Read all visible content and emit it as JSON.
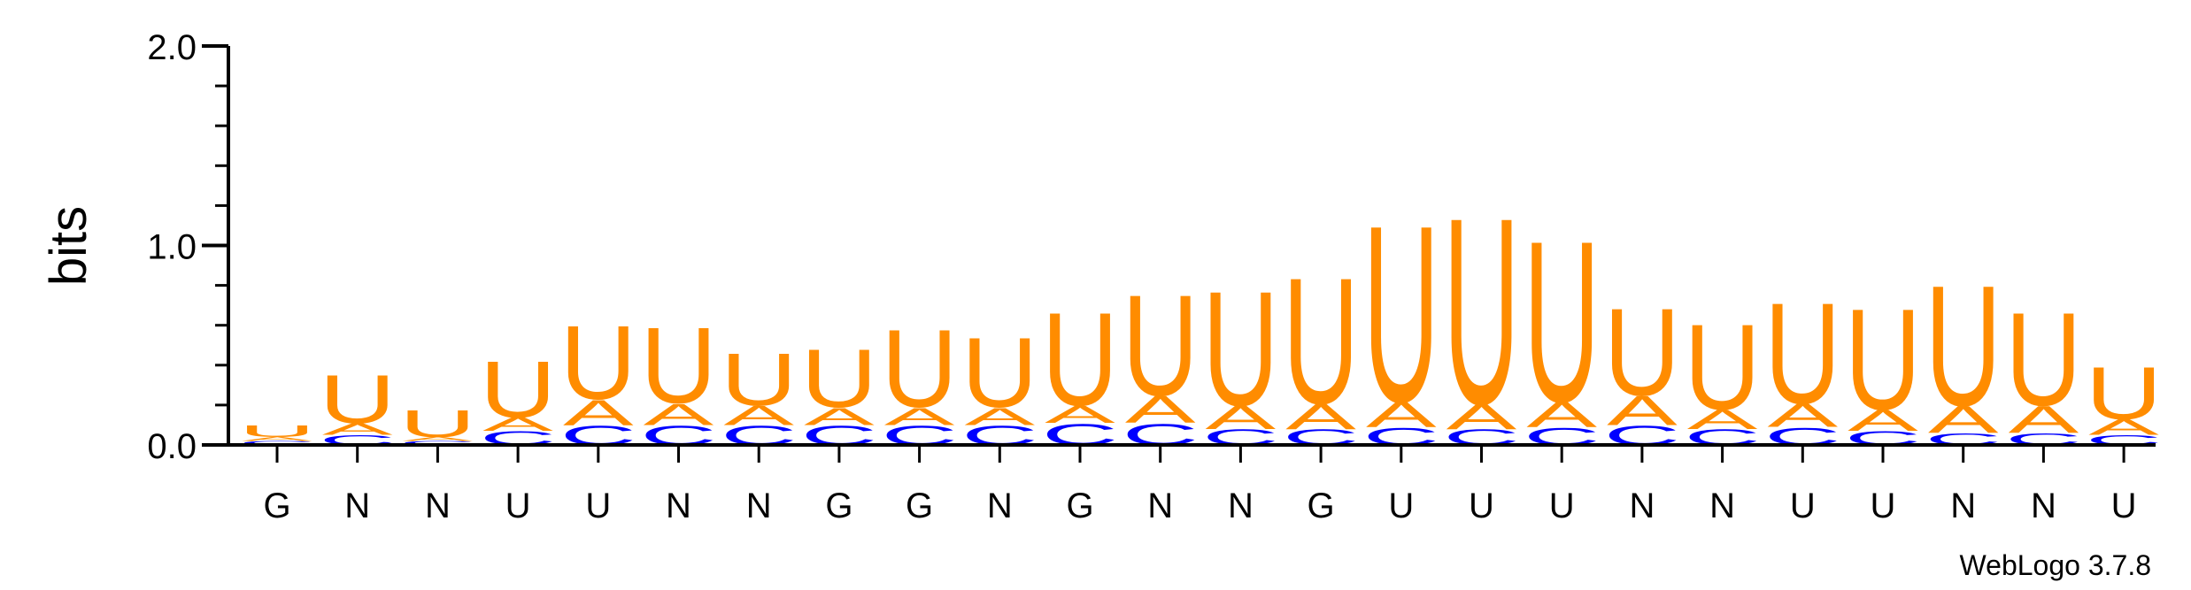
{
  "chart_data": {
    "type": "sequence-logo",
    "ylabel": "bits",
    "ylim": [
      0,
      2.0
    ],
    "yticks": [
      "0.0",
      "1.0",
      "2.0"
    ],
    "positions": [
      "G",
      "N",
      "N",
      "U",
      "U",
      "N",
      "N",
      "G",
      "G",
      "N",
      "G",
      "N",
      "N",
      "G",
      "U",
      "U",
      "U",
      "N",
      "N",
      "U",
      "U",
      "N",
      "N",
      "U"
    ],
    "stacks": [
      [
        {
          "letter": "C",
          "value": 0.02
        },
        {
          "letter": "A",
          "value": 0.02
        },
        {
          "letter": "U",
          "value": 0.06
        }
      ],
      [
        {
          "letter": "C",
          "value": 0.05
        },
        {
          "letter": "A",
          "value": 0.06
        },
        {
          "letter": "U",
          "value": 0.25
        }
      ],
      [
        {
          "letter": "C",
          "value": 0.02
        },
        {
          "letter": "A",
          "value": 0.02
        },
        {
          "letter": "U",
          "value": 0.14
        }
      ],
      [
        {
          "letter": "C",
          "value": 0.07
        },
        {
          "letter": "A",
          "value": 0.07
        },
        {
          "letter": "U",
          "value": 0.29
        }
      ],
      [
        {
          "letter": "C",
          "value": 0.1
        },
        {
          "letter": "A",
          "value": 0.13
        },
        {
          "letter": "U",
          "value": 0.38
        }
      ],
      [
        {
          "letter": "C",
          "value": 0.1
        },
        {
          "letter": "A",
          "value": 0.11
        },
        {
          "letter": "U",
          "value": 0.39
        }
      ],
      [
        {
          "letter": "C",
          "value": 0.1
        },
        {
          "letter": "A",
          "value": 0.1
        },
        {
          "letter": "U",
          "value": 0.27
        }
      ],
      [
        {
          "letter": "C",
          "value": 0.1
        },
        {
          "letter": "A",
          "value": 0.09
        },
        {
          "letter": "U",
          "value": 0.3
        }
      ],
      [
        {
          "letter": "C",
          "value": 0.1
        },
        {
          "letter": "A",
          "value": 0.09
        },
        {
          "letter": "U",
          "value": 0.4
        }
      ],
      [
        {
          "letter": "C",
          "value": 0.1
        },
        {
          "letter": "A",
          "value": 0.09
        },
        {
          "letter": "U",
          "value": 0.36
        }
      ],
      [
        {
          "letter": "C",
          "value": 0.11
        },
        {
          "letter": "A",
          "value": 0.09
        },
        {
          "letter": "U",
          "value": 0.48
        }
      ],
      [
        {
          "letter": "C",
          "value": 0.11
        },
        {
          "letter": "A",
          "value": 0.14
        },
        {
          "letter": "U",
          "value": 0.52
        }
      ],
      [
        {
          "letter": "C",
          "value": 0.08
        },
        {
          "letter": "A",
          "value": 0.12
        },
        {
          "letter": "U",
          "value": 0.59
        }
      ],
      [
        {
          "letter": "C",
          "value": 0.08
        },
        {
          "letter": "A",
          "value": 0.13
        },
        {
          "letter": "U",
          "value": 0.65
        }
      ],
      [
        {
          "letter": "C",
          "value": 0.09
        },
        {
          "letter": "A",
          "value": 0.13
        },
        {
          "letter": "U",
          "value": 0.91
        }
      ],
      [
        {
          "letter": "C",
          "value": 0.08
        },
        {
          "letter": "A",
          "value": 0.13
        },
        {
          "letter": "U",
          "value": 0.96
        }
      ],
      [
        {
          "letter": "C",
          "value": 0.09
        },
        {
          "letter": "A",
          "value": 0.13
        },
        {
          "letter": "U",
          "value": 0.83
        }
      ],
      [
        {
          "letter": "C",
          "value": 0.1
        },
        {
          "letter": "A",
          "value": 0.15
        },
        {
          "letter": "U",
          "value": 0.45
        }
      ],
      [
        {
          "letter": "C",
          "value": 0.08
        },
        {
          "letter": "A",
          "value": 0.1
        },
        {
          "letter": "U",
          "value": 0.44
        }
      ],
      [
        {
          "letter": "C",
          "value": 0.09
        },
        {
          "letter": "A",
          "value": 0.12
        },
        {
          "letter": "U",
          "value": 0.52
        }
      ],
      [
        {
          "letter": "C",
          "value": 0.07
        },
        {
          "letter": "A",
          "value": 0.11
        },
        {
          "letter": "U",
          "value": 0.52
        }
      ],
      [
        {
          "letter": "C",
          "value": 0.06
        },
        {
          "letter": "A",
          "value": 0.14
        },
        {
          "letter": "U",
          "value": 0.62
        }
      ],
      [
        {
          "letter": "C",
          "value": 0.06
        },
        {
          "letter": "A",
          "value": 0.14
        },
        {
          "letter": "U",
          "value": 0.48
        }
      ],
      [
        {
          "letter": "C",
          "value": 0.05
        },
        {
          "letter": "A",
          "value": 0.08
        },
        {
          "letter": "U",
          "value": 0.27
        }
      ]
    ],
    "colors": {
      "U": "#ff8c00",
      "A": "#ff8c00",
      "C": "#0000ff",
      "G": "#ffa500"
    },
    "credit": "WebLogo 3.7.8"
  }
}
